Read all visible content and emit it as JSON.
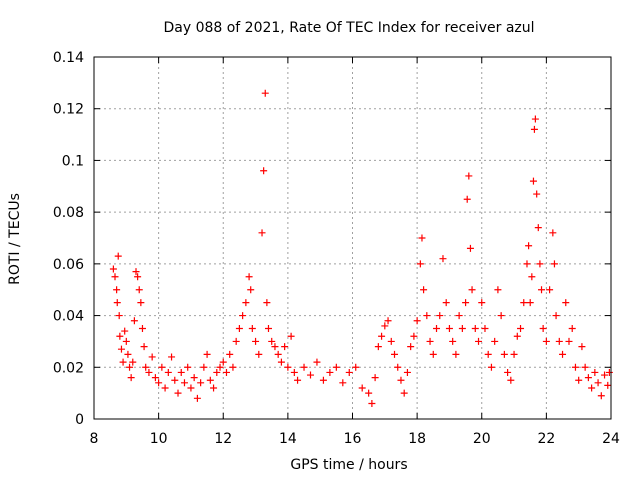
{
  "chart_data": {
    "type": "scatter",
    "title": "Day 088 of 2021, Rate Of TEC Index for receiver azul",
    "xlabel": "GPS time / hours",
    "ylabel": "ROTI / TECUs",
    "xlim": [
      8,
      24
    ],
    "ylim": [
      0,
      0.14
    ],
    "xticks": [
      8,
      10,
      12,
      14,
      16,
      18,
      20,
      22,
      24
    ],
    "xtick_labels": [
      "8",
      "10",
      "12",
      "14",
      "16",
      "18",
      "20",
      "22",
      "24"
    ],
    "yticks": [
      0,
      0.02,
      0.04,
      0.06,
      0.08,
      0.1,
      0.12,
      0.14
    ],
    "ytick_labels": [
      "0",
      "0.02",
      "0.04",
      "0.06",
      "0.08",
      "0.1",
      "0.12",
      "0.14"
    ],
    "grid": true,
    "marker": "+",
    "color": "#ff0000",
    "series": [
      {
        "name": "ROTI",
        "points": [
          [
            8.6,
            0.058
          ],
          [
            8.65,
            0.055
          ],
          [
            8.7,
            0.05
          ],
          [
            8.72,
            0.045
          ],
          [
            8.75,
            0.063
          ],
          [
            8.78,
            0.04
          ],
          [
            8.8,
            0.032
          ],
          [
            8.85,
            0.027
          ],
          [
            8.9,
            0.022
          ],
          [
            8.95,
            0.034
          ],
          [
            9.0,
            0.03
          ],
          [
            9.05,
            0.025
          ],
          [
            9.1,
            0.02
          ],
          [
            9.15,
            0.016
          ],
          [
            9.2,
            0.022
          ],
          [
            9.25,
            0.038
          ],
          [
            9.3,
            0.057
          ],
          [
            9.35,
            0.055
          ],
          [
            9.4,
            0.05
          ],
          [
            9.45,
            0.045
          ],
          [
            9.5,
            0.035
          ],
          [
            9.55,
            0.028
          ],
          [
            9.6,
            0.02
          ],
          [
            9.7,
            0.018
          ],
          [
            9.8,
            0.024
          ],
          [
            9.9,
            0.016
          ],
          [
            10.0,
            0.014
          ],
          [
            10.1,
            0.02
          ],
          [
            10.2,
            0.012
          ],
          [
            10.3,
            0.018
          ],
          [
            10.4,
            0.024
          ],
          [
            10.5,
            0.015
          ],
          [
            10.6,
            0.01
          ],
          [
            10.7,
            0.018
          ],
          [
            10.8,
            0.014
          ],
          [
            10.9,
            0.02
          ],
          [
            11.0,
            0.012
          ],
          [
            11.1,
            0.016
          ],
          [
            11.2,
            0.008
          ],
          [
            11.3,
            0.014
          ],
          [
            11.4,
            0.02
          ],
          [
            11.5,
            0.025
          ],
          [
            11.6,
            0.015
          ],
          [
            11.7,
            0.012
          ],
          [
            11.8,
            0.018
          ],
          [
            11.9,
            0.02
          ],
          [
            12.0,
            0.022
          ],
          [
            12.1,
            0.018
          ],
          [
            12.2,
            0.025
          ],
          [
            12.3,
            0.02
          ],
          [
            12.4,
            0.03
          ],
          [
            12.5,
            0.035
          ],
          [
            12.6,
            0.04
          ],
          [
            12.7,
            0.045
          ],
          [
            12.8,
            0.055
          ],
          [
            12.85,
            0.05
          ],
          [
            12.9,
            0.035
          ],
          [
            13.0,
            0.03
          ],
          [
            13.1,
            0.025
          ],
          [
            13.2,
            0.072
          ],
          [
            13.25,
            0.096
          ],
          [
            13.3,
            0.126
          ],
          [
            13.35,
            0.045
          ],
          [
            13.4,
            0.035
          ],
          [
            13.5,
            0.03
          ],
          [
            13.6,
            0.028
          ],
          [
            13.7,
            0.025
          ],
          [
            13.8,
            0.022
          ],
          [
            13.9,
            0.028
          ],
          [
            14.0,
            0.02
          ],
          [
            14.1,
            0.032
          ],
          [
            14.2,
            0.018
          ],
          [
            14.3,
            0.015
          ],
          [
            14.5,
            0.02
          ],
          [
            14.7,
            0.017
          ],
          [
            14.9,
            0.022
          ],
          [
            15.1,
            0.015
          ],
          [
            15.3,
            0.018
          ],
          [
            15.5,
            0.02
          ],
          [
            15.7,
            0.014
          ],
          [
            15.9,
            0.018
          ],
          [
            16.1,
            0.02
          ],
          [
            16.3,
            0.012
          ],
          [
            16.5,
            0.01
          ],
          [
            16.6,
            0.006
          ],
          [
            16.7,
            0.016
          ],
          [
            16.8,
            0.028
          ],
          [
            16.9,
            0.032
          ],
          [
            17.0,
            0.036
          ],
          [
            17.1,
            0.038
          ],
          [
            17.2,
            0.03
          ],
          [
            17.3,
            0.025
          ],
          [
            17.4,
            0.02
          ],
          [
            17.5,
            0.015
          ],
          [
            17.6,
            0.01
          ],
          [
            17.7,
            0.018
          ],
          [
            17.8,
            0.028
          ],
          [
            17.9,
            0.032
          ],
          [
            18.0,
            0.038
          ],
          [
            18.1,
            0.06
          ],
          [
            18.15,
            0.07
          ],
          [
            18.2,
            0.05
          ],
          [
            18.3,
            0.04
          ],
          [
            18.4,
            0.03
          ],
          [
            18.5,
            0.025
          ],
          [
            18.6,
            0.035
          ],
          [
            18.7,
            0.04
          ],
          [
            18.8,
            0.062
          ],
          [
            18.9,
            0.045
          ],
          [
            19.0,
            0.035
          ],
          [
            19.1,
            0.03
          ],
          [
            19.2,
            0.025
          ],
          [
            19.3,
            0.04
          ],
          [
            19.4,
            0.035
          ],
          [
            19.5,
            0.045
          ],
          [
            19.55,
            0.085
          ],
          [
            19.6,
            0.094
          ],
          [
            19.65,
            0.066
          ],
          [
            19.7,
            0.05
          ],
          [
            19.8,
            0.035
          ],
          [
            19.9,
            0.03
          ],
          [
            20.0,
            0.045
          ],
          [
            20.1,
            0.035
          ],
          [
            20.2,
            0.025
          ],
          [
            20.3,
            0.02
          ],
          [
            20.4,
            0.03
          ],
          [
            20.5,
            0.05
          ],
          [
            20.6,
            0.04
          ],
          [
            20.7,
            0.025
          ],
          [
            20.8,
            0.018
          ],
          [
            20.9,
            0.015
          ],
          [
            21.0,
            0.025
          ],
          [
            21.1,
            0.032
          ],
          [
            21.2,
            0.035
          ],
          [
            21.3,
            0.045
          ],
          [
            21.4,
            0.06
          ],
          [
            21.45,
            0.067
          ],
          [
            21.5,
            0.045
          ],
          [
            21.55,
            0.055
          ],
          [
            21.6,
            0.092
          ],
          [
            21.63,
            0.112
          ],
          [
            21.66,
            0.116
          ],
          [
            21.7,
            0.087
          ],
          [
            21.75,
            0.074
          ],
          [
            21.8,
            0.06
          ],
          [
            21.85,
            0.05
          ],
          [
            21.9,
            0.035
          ],
          [
            22.0,
            0.03
          ],
          [
            22.1,
            0.05
          ],
          [
            22.2,
            0.072
          ],
          [
            22.25,
            0.06
          ],
          [
            22.3,
            0.04
          ],
          [
            22.4,
            0.03
          ],
          [
            22.5,
            0.025
          ],
          [
            22.6,
            0.045
          ],
          [
            22.7,
            0.03
          ],
          [
            22.8,
            0.035
          ],
          [
            22.9,
            0.02
          ],
          [
            23.0,
            0.015
          ],
          [
            23.1,
            0.028
          ],
          [
            23.2,
            0.02
          ],
          [
            23.3,
            0.016
          ],
          [
            23.4,
            0.012
          ],
          [
            23.5,
            0.018
          ],
          [
            23.6,
            0.014
          ],
          [
            23.7,
            0.009
          ],
          [
            23.8,
            0.017
          ],
          [
            23.9,
            0.013
          ],
          [
            23.95,
            0.018
          ]
        ]
      }
    ]
  }
}
